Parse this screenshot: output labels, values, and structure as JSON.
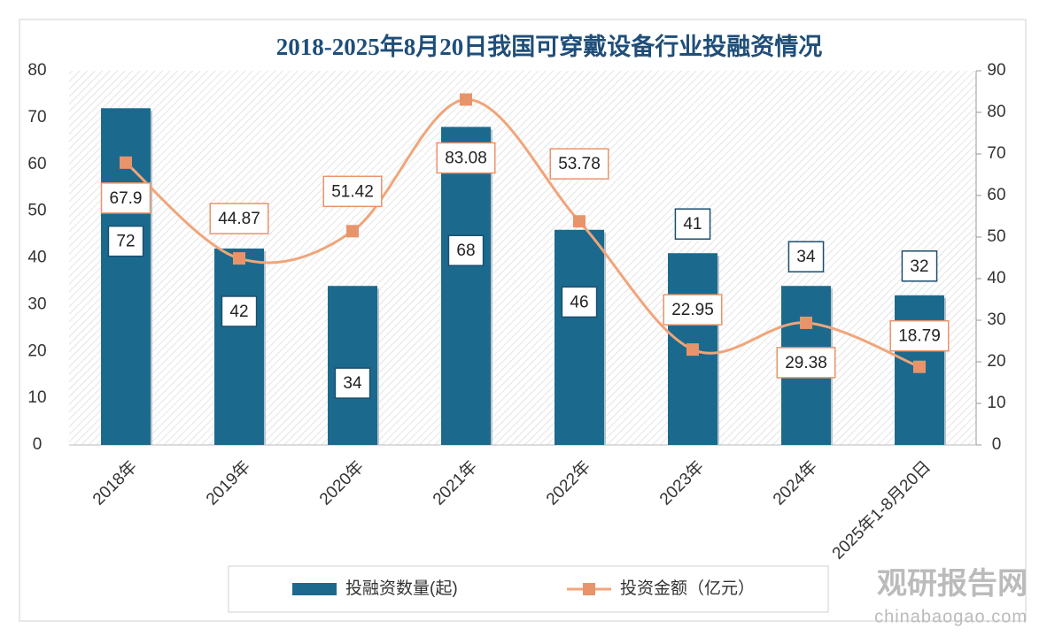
{
  "chart_data": {
    "type": "bar",
    "title": "2018-2025年8月20日我国可穿戴设备行业投融资情况",
    "categories": [
      "2018年",
      "2019年",
      "2020年",
      "2021年",
      "2022年",
      "2023年",
      "2024年",
      "2025年1-8月20日"
    ],
    "series": [
      {
        "name": "投融资数量(起)",
        "type": "bar",
        "color": "#1b6a8e",
        "values": [
          72,
          42,
          34,
          68,
          46,
          41,
          34,
          32
        ]
      },
      {
        "name": "投资金额（亿元）",
        "type": "line",
        "axis": "y2",
        "color": "#f0a57a",
        "values": [
          67.9,
          44.87,
          51.42,
          83.08,
          53.78,
          22.95,
          29.38,
          18.79
        ]
      }
    ],
    "ylim": [
      0,
      80
    ],
    "yticks": [
      0,
      10,
      20,
      30,
      40,
      50,
      60,
      70,
      80
    ],
    "y2lim": [
      0,
      90
    ],
    "y2ticks": [
      0,
      10,
      20,
      30,
      40,
      50,
      60,
      70,
      80,
      90
    ],
    "legend": "bottom",
    "watermark": {
      "name": "观研报告网",
      "url": "chinabaogao.com"
    }
  }
}
